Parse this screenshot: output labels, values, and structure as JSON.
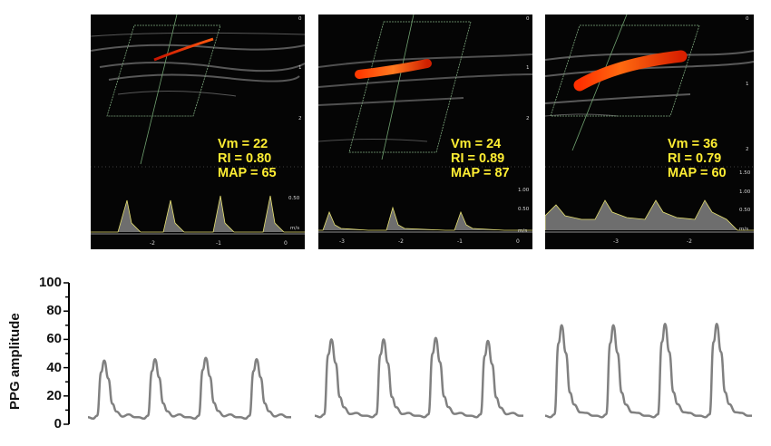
{
  "panels": [
    {
      "vm": "Vm = 22",
      "ri": "RI = 0.80",
      "map": "MAP = 65",
      "depth_ticks": [
        "0",
        "1",
        "2"
      ],
      "doppler_scale": [
        "0.50",
        "m/s"
      ],
      "time_ticks": [
        "-2",
        "-1",
        "0"
      ],
      "doppler_amplitude": 0.55
    },
    {
      "vm": "Vm = 24",
      "ri": "RI = 0.89",
      "map": "MAP = 87",
      "depth_ticks": [
        "0",
        "1",
        "2"
      ],
      "doppler_scale": [
        "1.00",
        "0.50",
        "m/s"
      ],
      "time_ticks": [
        "-3",
        "-2",
        "-1",
        "0"
      ],
      "doppler_amplitude": 0.45
    },
    {
      "vm": "Vm = 36",
      "ri": "RI = 0.79",
      "map": "MAP = 60",
      "depth_ticks": [
        "0",
        "1",
        "2"
      ],
      "doppler_scale": [
        "1.50",
        "1.00",
        "0.50",
        "m/s"
      ],
      "time_ticks": [
        "-3",
        "-2"
      ],
      "doppler_amplitude": 0.6
    }
  ],
  "ppg": {
    "ylabel": "PPG amplitude",
    "yticks": [
      "0",
      "20",
      "40",
      "60",
      "80",
      "100"
    ],
    "ylim": [
      0,
      100
    ],
    "line_color": "#808080",
    "segments": [
      {
        "peaks": [
          45,
          46,
          47,
          46
        ],
        "baseline": 4
      },
      {
        "peaks": [
          60,
          60,
          61,
          59
        ],
        "baseline": 5
      },
      {
        "peaks": [
          70,
          70,
          71,
          71
        ],
        "baseline": 5
      }
    ]
  }
}
